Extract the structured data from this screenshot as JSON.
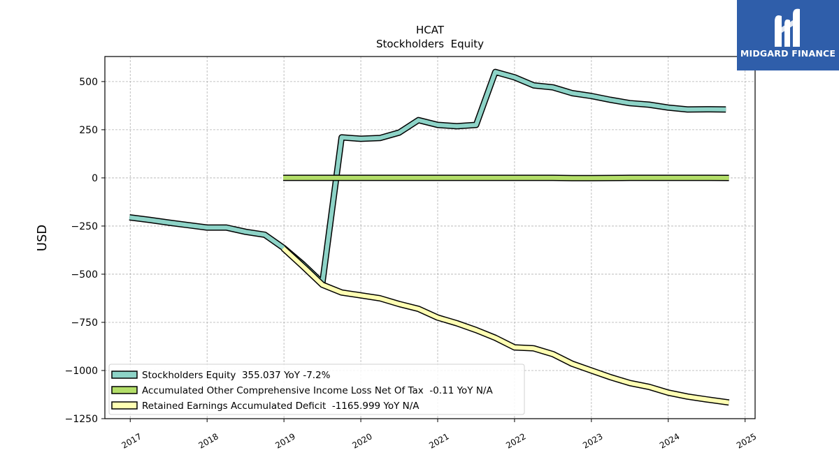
{
  "brand": {
    "name": "MIDGARD FINANCE",
    "bg_color": "#2f5eaa",
    "icon": "midgard-m-logo-icon"
  },
  "chart_data": {
    "type": "line",
    "title": "HCAT",
    "subtitle": "Stockholders  Equity",
    "ylabel": "USD",
    "xlabel": "",
    "ylim": [
      -1250,
      630
    ],
    "xlim": [
      2016.67,
      2025.13
    ],
    "yticks": [
      500,
      250,
      0,
      -250,
      -500,
      -750,
      -1000,
      -1250
    ],
    "ytick_labels": [
      "500",
      "250",
      "0",
      "−250",
      "−500",
      "−750",
      "−1000",
      "−1250"
    ],
    "xticks": [
      2017,
      2018,
      2019,
      2020,
      2021,
      2022,
      2023,
      2024,
      2025
    ],
    "xtick_labels": [
      "2017",
      "2018",
      "2019",
      "2020",
      "2021",
      "2022",
      "2023",
      "2024",
      "2025"
    ],
    "grid": true,
    "legend_position": "lower-left",
    "series": [
      {
        "name": "Stockholders Equity",
        "legend_label": "Stockholders Equity  355.037 YoY -7.2%",
        "color": "#8dd3c7",
        "x": [
          2016.99,
          2017.25,
          2017.5,
          2017.75,
          2018.0,
          2018.25,
          2018.5,
          2018.75,
          2019.0,
          2019.25,
          2019.5,
          2019.75,
          2020.0,
          2020.25,
          2020.5,
          2020.75,
          2021.0,
          2021.25,
          2021.5,
          2021.75,
          2022.0,
          2022.25,
          2022.5,
          2022.75,
          2023.0,
          2023.25,
          2023.5,
          2023.75,
          2024.0,
          2024.25,
          2024.5,
          2024.75
        ],
        "y": [
          -205,
          -218,
          -232,
          -245,
          -258,
          -258,
          -280,
          -295,
          -365,
          -450,
          -545,
          210,
          203,
          207,
          235,
          300,
          275,
          268,
          275,
          550,
          522,
          480,
          470,
          440,
          425,
          405,
          388,
          380,
          365,
          355,
          356,
          355
        ]
      },
      {
        "name": "Accumulated Other Comprehensive Income Loss Net Of Tax",
        "legend_label": "Accumulated Other Comprehensive Income Loss Net Of Tax  -0.11 YoY N/A",
        "color": "#b3de69",
        "x": [
          2018.99,
          2019.5,
          2020.0,
          2020.5,
          2021.0,
          2021.5,
          2022.0,
          2022.5,
          2022.75,
          2023.0,
          2023.5,
          2024.0,
          2024.5,
          2024.79
        ],
        "y": [
          0,
          0,
          0,
          0,
          0,
          0,
          0,
          0,
          -1,
          -1,
          0,
          0,
          0,
          -0.11
        ]
      },
      {
        "name": "Retained Earnings Accumulated Deficit",
        "legend_label": "Retained Earnings Accumulated Deficit  -1165.999 YoY N/A",
        "color": "#ffffb3",
        "x": [
          2018.99,
          2019.25,
          2019.5,
          2019.75,
          2020.0,
          2020.25,
          2020.5,
          2020.75,
          2021.0,
          2021.25,
          2021.5,
          2021.75,
          2022.0,
          2022.25,
          2022.5,
          2022.75,
          2023.0,
          2023.25,
          2023.5,
          2023.75,
          2024.0,
          2024.25,
          2024.5,
          2024.79
        ],
        "y": [
          -365,
          -460,
          -555,
          -595,
          -610,
          -625,
          -655,
          -680,
          -725,
          -755,
          -790,
          -830,
          -880,
          -885,
          -915,
          -965,
          -1000,
          -1035,
          -1065,
          -1085,
          -1115,
          -1135,
          -1150,
          -1166
        ]
      }
    ]
  }
}
